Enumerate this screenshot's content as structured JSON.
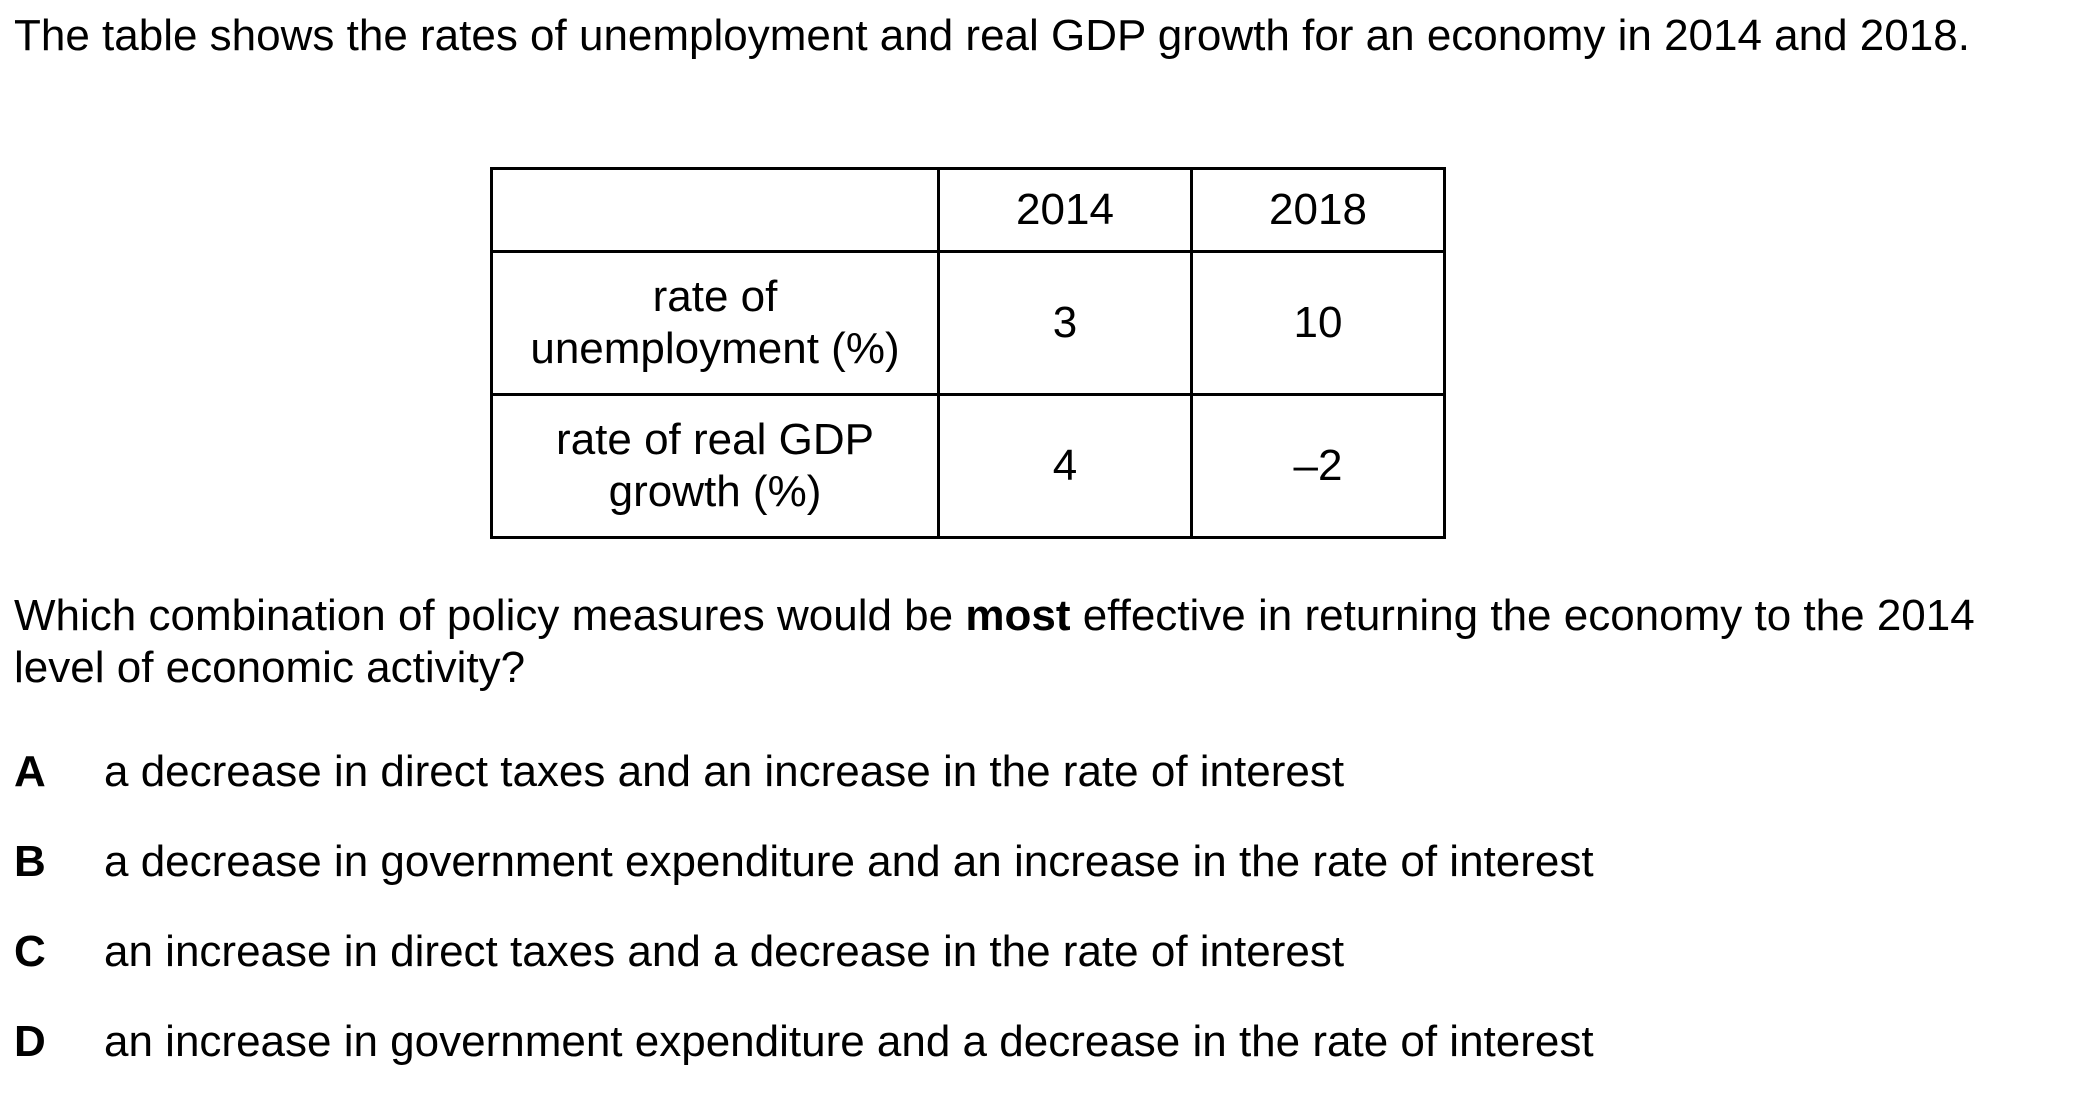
{
  "intro": "The table shows the rates of unemployment and real GDP growth for an economy in 2014 and 2018.",
  "table": {
    "headers": [
      "",
      "2014",
      "2018"
    ],
    "rows": [
      {
        "label": "rate of unemployment (%)",
        "label_line1": "rate of",
        "label_line2": "unemployment (%)",
        "v2014": "3",
        "v2018": "10"
      },
      {
        "label": "rate of real GDP growth (%)",
        "label_line1": "rate of real GDP",
        "label_line2": "growth (%)",
        "v2014": "4",
        "v2018": "–2"
      }
    ]
  },
  "question": {
    "before_bold": "Which combination of policy measures would be ",
    "bold": "most",
    "after_bold": " effective in returning the economy to the 2014 level of economic activity?"
  },
  "options": [
    {
      "letter": "A",
      "text": "a decrease in direct taxes and an increase in the rate of interest"
    },
    {
      "letter": "B",
      "text": "a decrease in government expenditure and an increase in the rate of interest"
    },
    {
      "letter": "C",
      "text": "an increase in direct taxes and a decrease in the rate of interest"
    },
    {
      "letter": "D",
      "text": "an increase in government expenditure and a decrease in the rate of interest"
    }
  ]
}
